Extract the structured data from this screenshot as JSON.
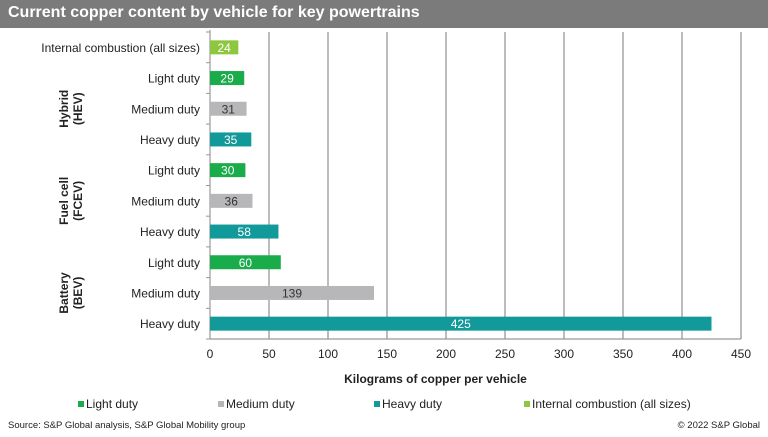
{
  "chart_data": {
    "type": "bar",
    "orientation": "horizontal",
    "title": "Current copper content by vehicle for key powertrains",
    "xlabel": "Kilograms of copper per vehicle",
    "xlim": [
      0,
      450
    ],
    "xticks": [
      0,
      50,
      100,
      150,
      200,
      250,
      300,
      350,
      400,
      450
    ],
    "grid": true,
    "legend_position": "bottom",
    "groups": [
      {
        "label": "Hybrid (HEV)",
        "lines": [
          "Hybrid",
          "(HEV)"
        ]
      },
      {
        "label": "Fuel cell (FCEV)",
        "lines": [
          "Fuel cell",
          "(FCEV)"
        ]
      },
      {
        "label": "Battery (BEV)",
        "lines": [
          "Battery",
          "(BEV)"
        ]
      }
    ],
    "bars": [
      {
        "category": "Internal combustion (all sizes)",
        "group": null,
        "series": "ice",
        "value": 24
      },
      {
        "category": "Light duty",
        "group": 0,
        "series": "light",
        "value": 29
      },
      {
        "category": "Medium duty",
        "group": 0,
        "series": "medium",
        "value": 31
      },
      {
        "category": "Heavy duty",
        "group": 0,
        "series": "heavy",
        "value": 35
      },
      {
        "category": "Light duty",
        "group": 1,
        "series": "light",
        "value": 30
      },
      {
        "category": "Medium duty",
        "group": 1,
        "series": "medium",
        "value": 36
      },
      {
        "category": "Heavy duty",
        "group": 1,
        "series": "heavy",
        "value": 58
      },
      {
        "category": "Light duty",
        "group": 2,
        "series": "light",
        "value": 60
      },
      {
        "category": "Medium duty",
        "group": 2,
        "series": "medium",
        "value": 139
      },
      {
        "category": "Heavy duty",
        "group": 2,
        "series": "heavy",
        "value": 425
      }
    ],
    "series": [
      {
        "key": "light",
        "name": "Light duty",
        "color": "#1aab4b",
        "label_color": "#ffffff"
      },
      {
        "key": "medium",
        "name": "Medium duty",
        "color": "#b7b7b9",
        "label_color": "#333333"
      },
      {
        "key": "heavy",
        "name": "Heavy duty",
        "color": "#12999a",
        "label_color": "#ffffff"
      },
      {
        "key": "ice",
        "name": "Internal combustion (all sizes)",
        "color": "#8dc63f",
        "label_color": "#ffffff"
      }
    ]
  },
  "footer": {
    "source": "Source: S&P Global analysis, S&P Global Mobility group",
    "copyright": "© 2022 S&P Global"
  }
}
